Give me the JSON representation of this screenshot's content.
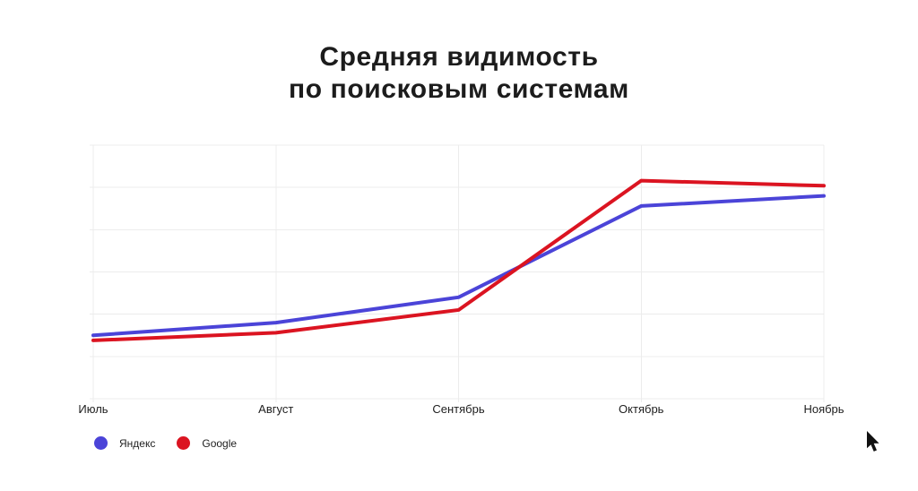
{
  "title": {
    "line1": "Средняя видимость",
    "line2": "по поисковым системам"
  },
  "chart_data": {
    "type": "line",
    "title": "Средняя видимость по поисковым системам",
    "categories": [
      "Июль",
      "Август",
      "Сентябрь",
      "Октябрь",
      "Ноябрь"
    ],
    "series": [
      {
        "name": "Яндекс",
        "color": "#4b44d8",
        "values": [
          25,
          30,
          40,
          76,
          80
        ]
      },
      {
        "name": "Google",
        "color": "#db1421",
        "values": [
          23,
          26,
          35,
          86,
          84
        ]
      }
    ],
    "xlabel": "",
    "ylabel": "",
    "ylim": [
      0,
      100
    ],
    "x_gridlines": 5,
    "y_gridlines": 7,
    "grid": true,
    "grid_color": "#ececec",
    "y_axis_labels_visible": false,
    "legend_position": "bottom-left",
    "line_width": 4,
    "note": "y-axis has no tick labels; values estimated as percent of plot height from gridlines"
  },
  "cursor_icon": {
    "name": "arrow-pointer",
    "color": "#111111"
  }
}
